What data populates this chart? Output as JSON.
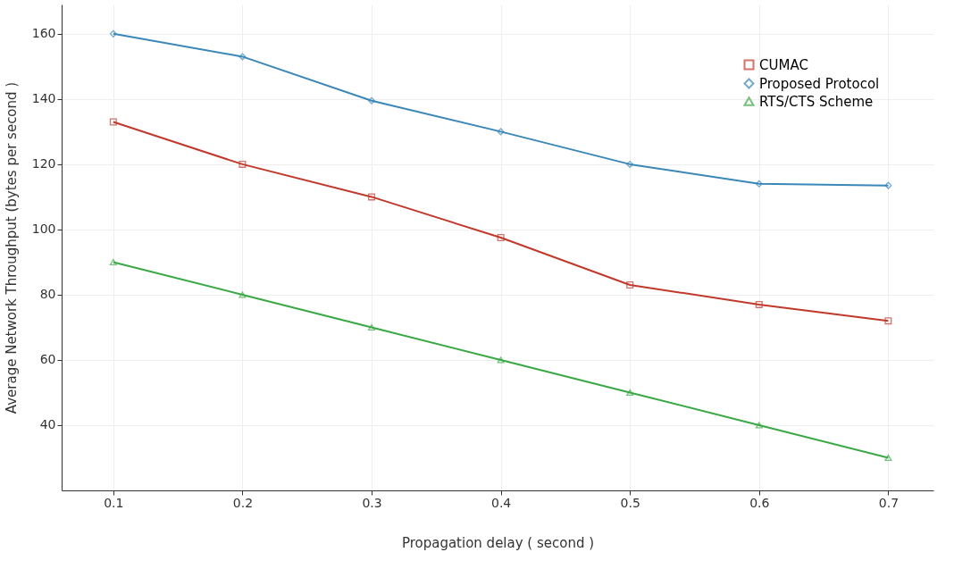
{
  "chart_data": {
    "type": "line",
    "xlabel": "Propagation delay ( second )",
    "ylabel": "Average Network Throughput (bytes per second )",
    "x": [
      0.1,
      0.2,
      0.3,
      0.4,
      0.5,
      0.6,
      0.7
    ],
    "series": [
      {
        "name": "CUMAC",
        "color": "#c0392b",
        "marker": "square",
        "values": [
          133,
          120,
          110,
          97.5,
          83,
          77,
          72
        ]
      },
      {
        "name": "Proposed Protocol",
        "color": "#3a87b8",
        "marker": "diamond",
        "values": [
          160,
          153,
          139.5,
          130,
          120,
          114,
          113.5
        ]
      },
      {
        "name": "RTS/CTS Scheme",
        "color": "#3aa845",
        "marker": "triangle",
        "values": [
          90,
          80,
          70,
          60,
          50,
          40,
          30
        ]
      }
    ],
    "xlim": [
      0.06,
      0.735
    ],
    "xticks": [
      0.1,
      0.2,
      0.3,
      0.4,
      0.5,
      0.6,
      0.7
    ],
    "ylim": [
      20,
      169
    ],
    "yticks": [
      40,
      60,
      80,
      100,
      120,
      140,
      160
    ],
    "grid": true,
    "legend": "top right",
    "line_style": "solid"
  }
}
